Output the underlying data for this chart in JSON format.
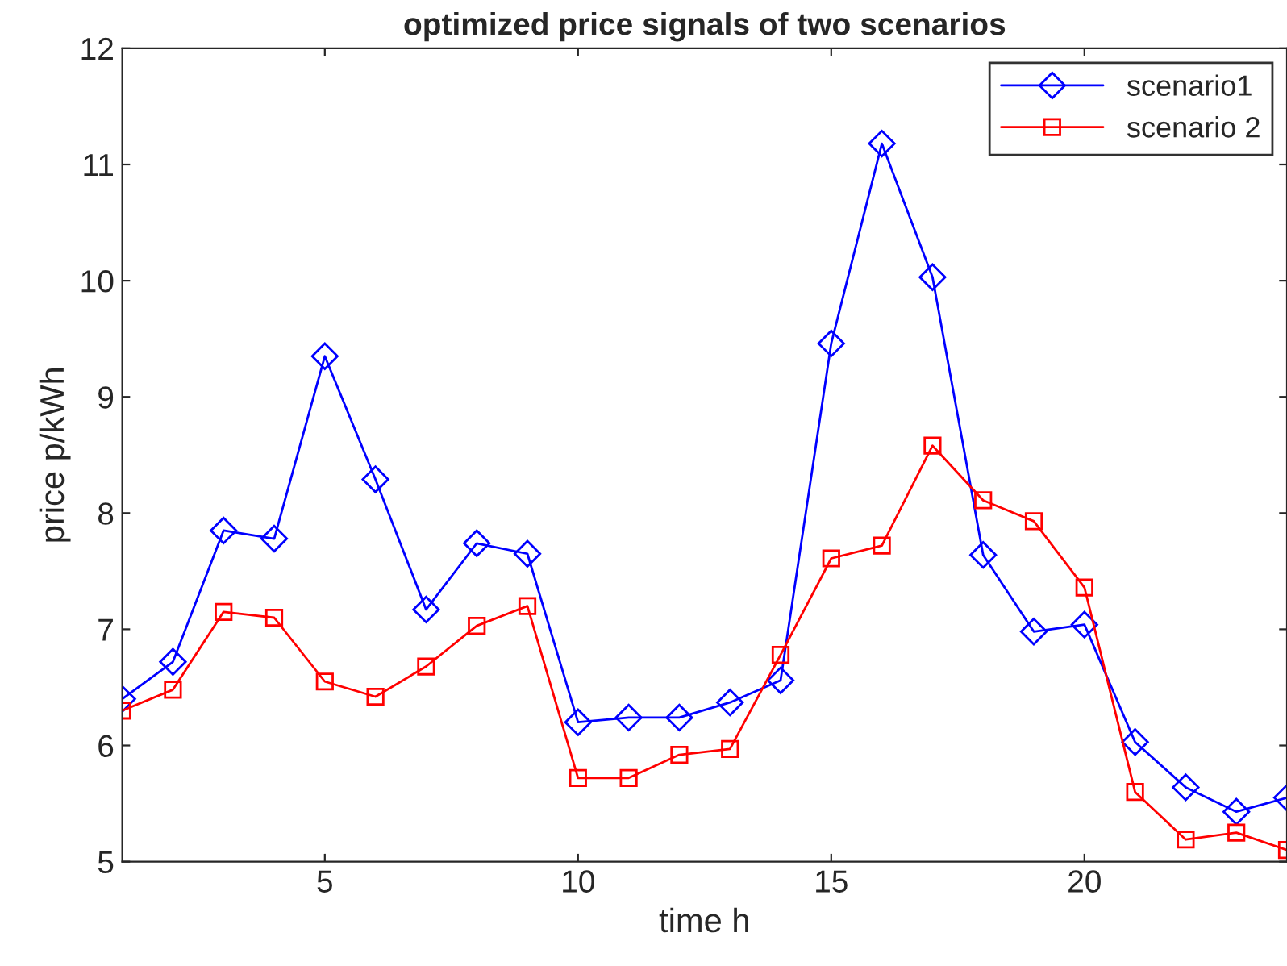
{
  "chart_data": {
    "type": "line",
    "title": "optimized price signals of two scenarios",
    "xlabel": "time h",
    "ylabel": "price p/kWh",
    "x": [
      1,
      2,
      3,
      4,
      5,
      6,
      7,
      8,
      9,
      10,
      11,
      12,
      13,
      14,
      15,
      16,
      17,
      18,
      19,
      20,
      21,
      22,
      23,
      24
    ],
    "series": [
      {
        "name": "scenario1",
        "color": "#0000ff",
        "marker": "diamond",
        "values": [
          6.4,
          6.72,
          7.85,
          7.78,
          9.35,
          8.29,
          7.17,
          7.74,
          7.65,
          6.2,
          6.24,
          6.24,
          6.37,
          6.56,
          9.46,
          11.18,
          10.03,
          7.64,
          6.98,
          7.04,
          6.03,
          5.64,
          5.43,
          5.55
        ]
      },
      {
        "name": "scenario 2",
        "color": "#ff0000",
        "marker": "square",
        "values": [
          6.3,
          6.48,
          7.15,
          7.1,
          6.55,
          6.42,
          6.68,
          7.03,
          7.2,
          5.72,
          5.72,
          5.92,
          5.97,
          6.78,
          7.61,
          7.72,
          8.58,
          8.11,
          7.93,
          7.36,
          5.6,
          5.19,
          5.25,
          5.1
        ]
      }
    ],
    "xlim": [
      1,
      24
    ],
    "xticks": [
      5,
      10,
      15,
      20
    ],
    "ylim": [
      5,
      12
    ],
    "yticks": [
      5,
      6,
      7,
      8,
      9,
      10,
      11,
      12
    ],
    "legend": "top right",
    "line_style": "solid"
  }
}
